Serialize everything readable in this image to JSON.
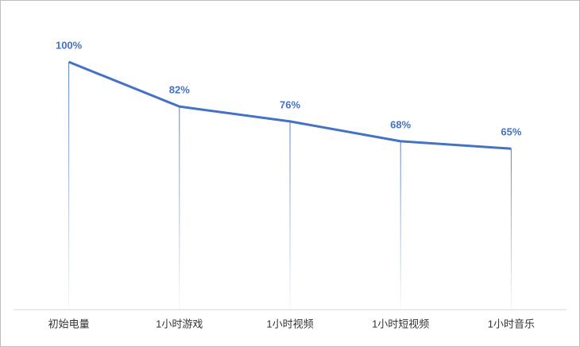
{
  "chart_data": {
    "type": "line",
    "categories": [
      "初始电量",
      "1小时游戏",
      "1小时视频",
      "1小时短视频",
      "1小时音乐"
    ],
    "values": [
      100,
      82,
      76,
      68,
      65
    ],
    "value_labels": [
      "100%",
      "82%",
      "76%",
      "68%",
      "65%"
    ],
    "color": "#4472c4",
    "ylim": [
      0,
      100
    ]
  }
}
